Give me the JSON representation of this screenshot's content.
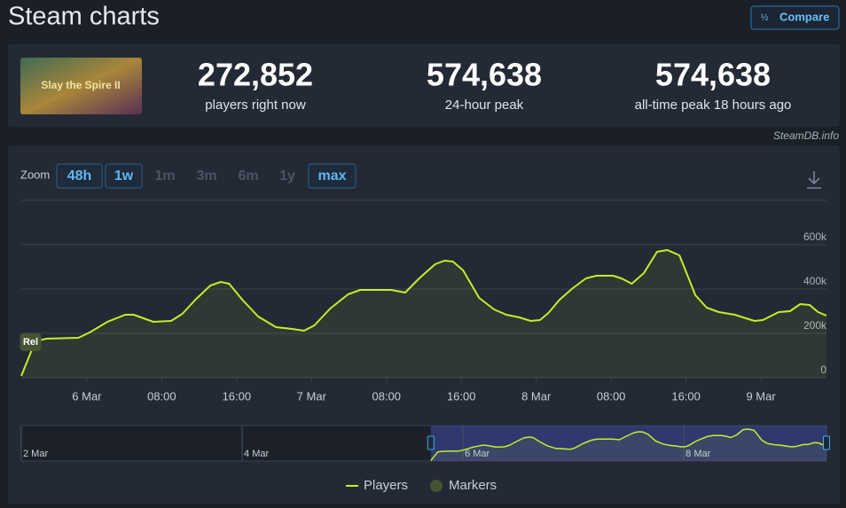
{
  "header": {
    "title": "Steam charts",
    "button": "Compare"
  },
  "game": {
    "image_title": "Slay the Spire II"
  },
  "stats": [
    {
      "value": "272,852",
      "label": "players right now"
    },
    {
      "value": "574,638",
      "label": "24-hour peak"
    },
    {
      "value": "574,638",
      "label": "all-time peak 18 hours ago"
    }
  ],
  "credit": "SteamDB.info",
  "zoom": {
    "label": "Zoom",
    "buttons": [
      {
        "label": "48h",
        "enabled": true
      },
      {
        "label": "1w",
        "enabled": true
      },
      {
        "label": "1m",
        "enabled": false
      },
      {
        "label": "3m",
        "enabled": false
      },
      {
        "label": "6m",
        "enabled": false
      },
      {
        "label": "1y",
        "enabled": false
      },
      {
        "label": "max",
        "enabled": true
      }
    ]
  },
  "chart_data": {
    "type": "line",
    "x": [
      -7,
      -5.5,
      -4.3,
      -0.9,
      0.3,
      2.2,
      4.1,
      5,
      7.1,
      9,
      10.2,
      11.6,
      13.2,
      14.3,
      15.2,
      16.6,
      18.3,
      20.2,
      21.9,
      23.2,
      24.3,
      26,
      27.9,
      29.2,
      32.5,
      34,
      35.5,
      37.2,
      38.2,
      39.1,
      40.2,
      41.9,
      43.5,
      44.8,
      46.2,
      47.4,
      48.4,
      49.3,
      50.5,
      51.9,
      53.3,
      54.4,
      56.2,
      57.1,
      58.2,
      59.5,
      60.9,
      62,
      63.3,
      65,
      66.2,
      67.5,
      69.2,
      71.3,
      72.2,
      73.9,
      75.1,
      76.2,
      77.2,
      78.1,
      79
    ],
    "series": [
      {
        "name": "Players",
        "color": "#c3ef2a",
        "values": [
          8000,
          164000,
          176000,
          180000,
          204000,
          252000,
          284000,
          284000,
          252000,
          256000,
          288000,
          352000,
          416000,
          432000,
          424000,
          352000,
          276000,
          228000,
          220000,
          212000,
          236000,
          312000,
          376000,
          396000,
          396000,
          384000,
          448000,
          512000,
          528000,
          524000,
          484000,
          360000,
          308000,
          284000,
          272000,
          256000,
          260000,
          292000,
          352000,
          404000,
          448000,
          460000,
          460000,
          448000,
          424000,
          472000,
          568000,
          576000,
          552000,
          372000,
          316000,
          296000,
          284000,
          256000,
          260000,
          296000,
          300000,
          332000,
          328000,
          296000,
          280000
        ]
      }
    ],
    "markers": {
      "name": "Markers",
      "color": "#465434",
      "labels": [
        "Rel"
      ],
      "x": [
        -6
      ]
    },
    "xlim": [
      -7,
      79
    ],
    "xticks": [
      {
        "value": 0,
        "label": "6 Mar"
      },
      {
        "value": 8,
        "label": "08:00"
      },
      {
        "value": 16,
        "label": "16:00"
      },
      {
        "value": 24,
        "label": "7 Mar"
      },
      {
        "value": 32,
        "label": "08:00"
      },
      {
        "value": 40,
        "label": "16:00"
      },
      {
        "value": 48,
        "label": "8 Mar"
      },
      {
        "value": 56,
        "label": "08:00"
      },
      {
        "value": 64,
        "label": "16:00"
      },
      {
        "value": 72,
        "label": "9 Mar"
      }
    ],
    "ylim": [
      0,
      800000
    ],
    "yticks": [
      {
        "value": 0,
        "label": "0"
      },
      {
        "value": 200000,
        "label": "200k"
      },
      {
        "value": 400000,
        "label": "400k"
      },
      {
        "value": 600000,
        "label": "600k"
      }
    ],
    "grid": true,
    "navigator": {
      "xlim": [
        -96,
        79
      ],
      "ylim": [
        0,
        640000
      ],
      "xticks": [
        {
          "value": -96,
          "label": "2 Mar"
        },
        {
          "value": -48,
          "label": "4 Mar"
        },
        {
          "value": 0,
          "label": "6 Mar"
        },
        {
          "value": 48,
          "label": "8 Mar"
        }
      ]
    }
  }
}
